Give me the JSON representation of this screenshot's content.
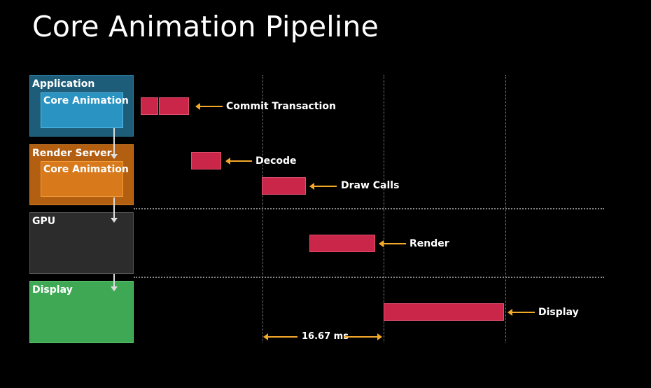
{
  "title": "Core Animation Pipeline",
  "stages": {
    "application": "Application",
    "application_inner": "Core Animation",
    "render_server": "Render Server",
    "render_server_inner": "Core Animation",
    "gpu": "GPU",
    "display": "Display"
  },
  "steps": {
    "commit": "Commit Transaction",
    "decode": "Decode",
    "draw_calls": "Draw Calls",
    "render": "Render",
    "display": "Display"
  },
  "timing": {
    "frame_duration": "16.67 ms"
  },
  "colors": {
    "bar": "#c9264a",
    "arrow": "#f4a928",
    "application": "#1d5d79",
    "render_server": "#b35f12",
    "gpu": "#2c2c2c",
    "display": "#3fa854"
  }
}
